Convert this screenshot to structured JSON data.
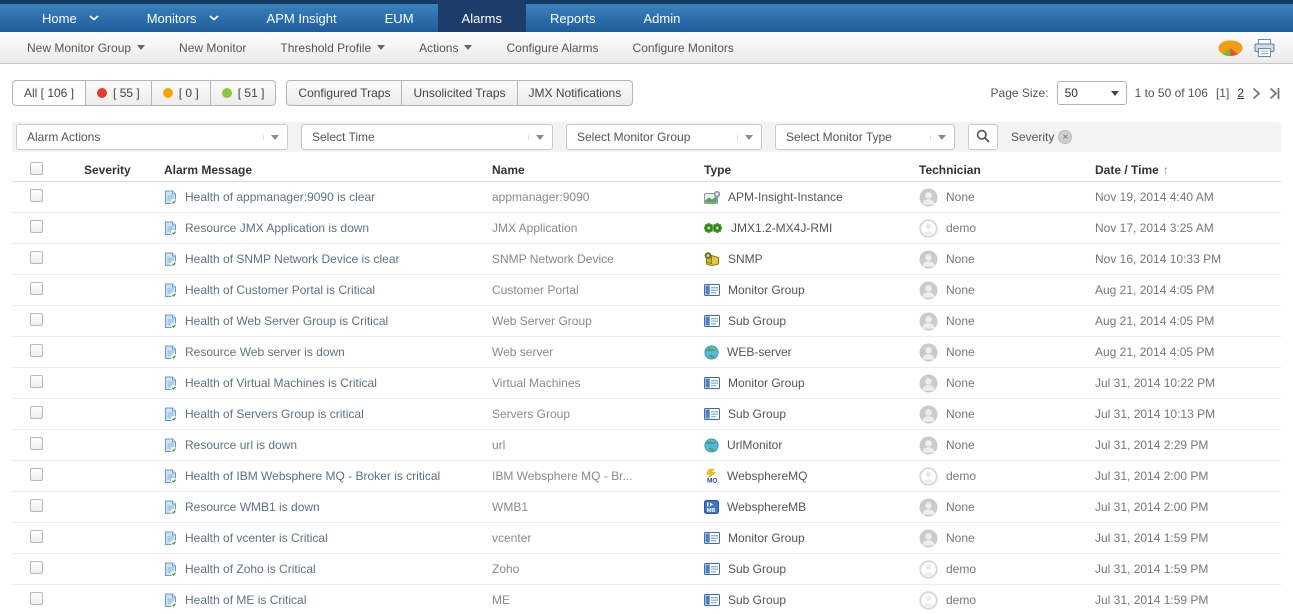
{
  "ui_colors": {
    "nav_blue_top": "#3b82bd",
    "nav_blue_bottom": "#1f5c9b",
    "nav_active_tab": "#1e3c69",
    "severity_red": "#e8392b",
    "severity_orange": "#f5a20a",
    "severity_green": "#8cc63e"
  },
  "nav": {
    "items": [
      {
        "label": "Home",
        "caret": true,
        "active": false
      },
      {
        "label": "Monitors",
        "caret": true,
        "active": false
      },
      {
        "label": "APM Insight",
        "caret": false,
        "active": false
      },
      {
        "label": "EUM",
        "caret": false,
        "active": false
      },
      {
        "label": "Alarms",
        "caret": false,
        "active": true
      },
      {
        "label": "Reports",
        "caret": false,
        "active": false
      },
      {
        "label": "Admin",
        "caret": false,
        "active": false
      }
    ]
  },
  "toolbar": {
    "items": [
      {
        "label": "New Monitor Group",
        "caret": true
      },
      {
        "label": "New Monitor",
        "caret": false
      },
      {
        "label": "Threshold Profile",
        "caret": true
      },
      {
        "label": "Actions",
        "caret": true
      },
      {
        "label": "Configure Alarms",
        "caret": false
      },
      {
        "label": "Configure Monitors",
        "caret": false
      }
    ],
    "right_icons": [
      "pie-chart-icon",
      "print-icon"
    ]
  },
  "filter_tabs": {
    "severity_tabs": [
      {
        "label": "All [ 106 ]",
        "active": true,
        "dot_color": ""
      },
      {
        "label": "[ 55 ]",
        "active": false,
        "dot_color": "#e8392b"
      },
      {
        "label": "[ 0 ]",
        "active": false,
        "dot_color": "#f5a20a"
      },
      {
        "label": "[ 51 ]",
        "active": false,
        "dot_color": "#8cc63e"
      }
    ],
    "trap_tabs": [
      {
        "label": "Configured Traps"
      },
      {
        "label": "Unsolicited Traps"
      },
      {
        "label": "JMX Notifications"
      }
    ]
  },
  "pagination": {
    "page_size_label": "Page Size:",
    "page_size_value": "50",
    "range_text": "1 to 50 of 106",
    "current_page": "[1]",
    "next_page_link": "2"
  },
  "filter_bar": {
    "dropdowns": [
      {
        "label": "Alarm Actions"
      },
      {
        "label": "Select Time"
      },
      {
        "label": "Select Monitor Group"
      },
      {
        "label": "Select Monitor Type"
      }
    ],
    "active_filter_chip": "Severity"
  },
  "table": {
    "columns": [
      "Severity",
      "Alarm Message",
      "Name",
      "Type",
      "Technician",
      "Date / Time"
    ],
    "sort_indicator": "↑",
    "rows": [
      {
        "severity": "green",
        "message": "Health of appmanager:9090 is clear",
        "name": "appmanager:9090",
        "type": {
          "icon": "apm-insight-icon",
          "label": "APM-Insight-Instance"
        },
        "technician": {
          "name": "None",
          "avatar": "filled"
        },
        "datetime": "Nov 19, 2014 4:40 AM"
      },
      {
        "severity": "red",
        "message": "Resource JMX Application is down",
        "name": "JMX Application",
        "type": {
          "icon": "jmx-icon",
          "label": "JMX1.2-MX4J-RMI"
        },
        "technician": {
          "name": "demo",
          "avatar": "outline"
        },
        "datetime": "Nov 17, 2014 3:25 AM"
      },
      {
        "severity": "green",
        "message": "Health of SNMP Network Device is clear",
        "name": "SNMP Network Device",
        "type": {
          "icon": "snmp-icon",
          "label": "SNMP"
        },
        "technician": {
          "name": "None",
          "avatar": "filled"
        },
        "datetime": "Nov 16, 2014 10:33 PM"
      },
      {
        "severity": "red",
        "message": "Health of Customer Portal is Critical",
        "name": "Customer Portal",
        "type": {
          "icon": "monitor-group-icon",
          "label": "Monitor Group"
        },
        "technician": {
          "name": "None",
          "avatar": "filled"
        },
        "datetime": "Aug 21, 2014 4:05 PM"
      },
      {
        "severity": "red",
        "message": "Health of Web Server Group is Critical",
        "name": "Web Server Group",
        "type": {
          "icon": "sub-group-icon",
          "label": "Sub Group"
        },
        "technician": {
          "name": "None",
          "avatar": "filled"
        },
        "datetime": "Aug 21, 2014 4:05 PM"
      },
      {
        "severity": "red",
        "message": "Resource Web server is down",
        "name": "Web server",
        "type": {
          "icon": "web-server-icon",
          "label": "WEB-server"
        },
        "technician": {
          "name": "None",
          "avatar": "filled"
        },
        "datetime": "Aug 21, 2014 4:05 PM"
      },
      {
        "severity": "red",
        "message": "Health of Virtual Machines is Critical",
        "name": "Virtual Machines",
        "type": {
          "icon": "monitor-group-icon",
          "label": "Monitor Group"
        },
        "technician": {
          "name": "None",
          "avatar": "filled"
        },
        "datetime": "Jul 31, 2014 10:22 PM"
      },
      {
        "severity": "red",
        "message": "Health of Servers Group is critical",
        "name": "Servers Group",
        "type": {
          "icon": "sub-group-icon",
          "label": "Sub Group"
        },
        "technician": {
          "name": "None",
          "avatar": "filled"
        },
        "datetime": "Jul 31, 2014 10:13 PM"
      },
      {
        "severity": "red",
        "message": "Resource url is down",
        "name": "url",
        "type": {
          "icon": "url-monitor-icon",
          "label": "UrlMonitor"
        },
        "technician": {
          "name": "None",
          "avatar": "filled"
        },
        "datetime": "Jul 31, 2014 2:29 PM"
      },
      {
        "severity": "red",
        "message": "Health of IBM Websphere MQ - Broker is critical",
        "name": "IBM Websphere MQ - Br...",
        "type": {
          "icon": "websphere-mq-icon",
          "label": "WebsphereMQ"
        },
        "technician": {
          "name": "demo",
          "avatar": "outline"
        },
        "datetime": "Jul 31, 2014 2:00 PM"
      },
      {
        "severity": "red",
        "message": "Resource WMB1 is down",
        "name": "WMB1",
        "type": {
          "icon": "websphere-mb-icon",
          "label": "WebsphereMB"
        },
        "technician": {
          "name": "None",
          "avatar": "filled"
        },
        "datetime": "Jul 31, 2014 2:00 PM"
      },
      {
        "severity": "red",
        "message": "Health of vcenter is Critical",
        "name": "vcenter",
        "type": {
          "icon": "monitor-group-icon",
          "label": "Monitor Group"
        },
        "technician": {
          "name": "None",
          "avatar": "filled"
        },
        "datetime": "Jul 31, 2014 1:59 PM"
      },
      {
        "severity": "red",
        "message": "Health of Zoho is Critical",
        "name": "Zoho",
        "type": {
          "icon": "sub-group-icon",
          "label": "Sub Group"
        },
        "technician": {
          "name": "demo",
          "avatar": "outline"
        },
        "datetime": "Jul 31, 2014 1:59 PM"
      },
      {
        "severity": "red",
        "message": "Health of ME is Critical",
        "name": "ME",
        "type": {
          "icon": "sub-group-icon",
          "label": "Sub Group"
        },
        "technician": {
          "name": "demo",
          "avatar": "outline"
        },
        "datetime": "Jul 31, 2014 1:59 PM"
      }
    ]
  }
}
